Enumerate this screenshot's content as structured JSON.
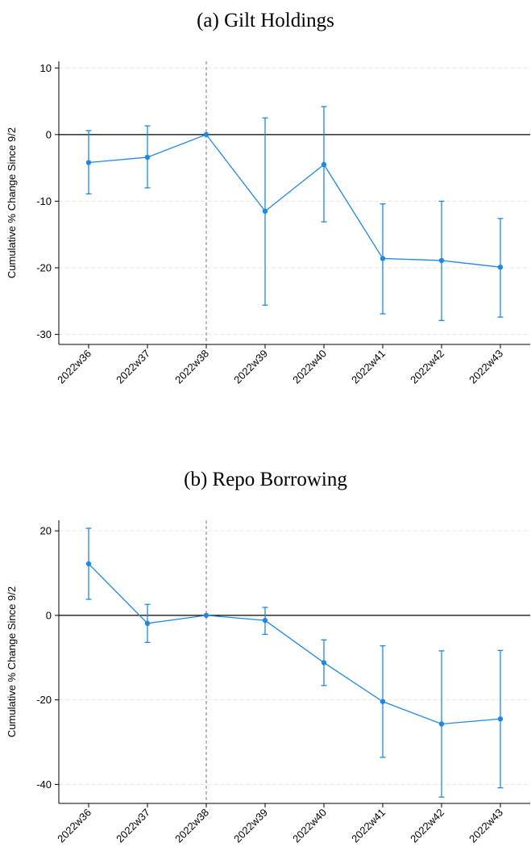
{
  "chart_data": [
    {
      "type": "line",
      "title": "(a) Gilt Holdings",
      "xlabel": "",
      "ylabel": "Cumulative % Change Since 9/2",
      "categories": [
        "2022w36",
        "2022w37",
        "2022w38",
        "2022w39",
        "2022w40",
        "2022w41",
        "2022w42",
        "2022w43"
      ],
      "series": [
        {
          "values": [
            -4.2,
            -3.4,
            0,
            -11.5,
            -4.5,
            -18.6,
            -18.9,
            -19.9
          ],
          "ci_low": [
            -8.9,
            -8.0,
            0,
            -25.6,
            -13.1,
            -26.9,
            -27.9,
            -27.4
          ],
          "ci_high": [
            0.6,
            1.3,
            0,
            2.5,
            4.2,
            -10.4,
            -10.0,
            -12.6
          ]
        }
      ],
      "ylim": [
        -31.5,
        11
      ],
      "yticks": [
        10,
        0,
        -10,
        -20,
        -30
      ],
      "vline_category": "2022w38",
      "zero_line": true,
      "grid": true,
      "series_color": "#1e88e5"
    },
    {
      "type": "line",
      "title": "(b) Repo Borrowing",
      "xlabel": "",
      "ylabel": "Cumulative % Change Since 9/2",
      "categories": [
        "2022w36",
        "2022w37",
        "2022w38",
        "2022w39",
        "2022w40",
        "2022w41",
        "2022w42",
        "2022w43"
      ],
      "series": [
        {
          "values": [
            12.2,
            -1.9,
            0,
            -1.2,
            -11.2,
            -20.4,
            -25.7,
            -24.5
          ],
          "ci_low": [
            3.8,
            -6.4,
            0,
            -4.5,
            -16.6,
            -33.6,
            -43.0,
            -40.8
          ],
          "ci_high": [
            20.6,
            2.6,
            0,
            1.9,
            -5.8,
            -7.2,
            -8.4,
            -8.3
          ]
        }
      ],
      "ylim": [
        -44.5,
        22.5
      ],
      "yticks": [
        20,
        0,
        -20,
        -40
      ],
      "vline_category": "2022w38",
      "zero_line": true,
      "grid": true,
      "series_color": "#1e88e5"
    }
  ]
}
